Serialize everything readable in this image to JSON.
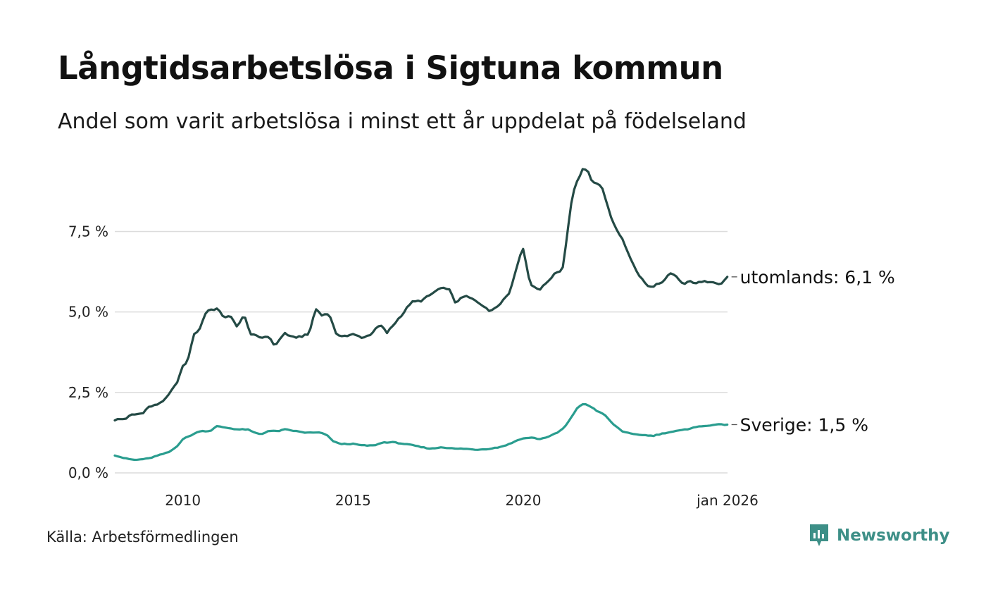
{
  "title": "Långtidsarbetslösa i Sigtuna kommun",
  "subtitle": "Andel som varit arbetslösa i minst ett år uppdelat på födelseland",
  "source": "Källa: Arbetsförmedlingen",
  "brand": {
    "name": "Newsworthy",
    "icon": "newsworthy-logo-icon",
    "color": "#3d8f87"
  },
  "chart_data": {
    "type": "line",
    "x_start": 2008.0,
    "x_step": 0.0833,
    "xlim": [
      2008.0,
      2026.0
    ],
    "ylim": [
      0,
      9.5
    ],
    "yticks": [
      {
        "value": 0,
        "label": "0,0 %"
      },
      {
        "value": 2.5,
        "label": "2,5 %"
      },
      {
        "value": 5,
        "label": "5,0 %"
      },
      {
        "value": 7.5,
        "label": "7,5 %"
      }
    ],
    "xticks": [
      {
        "value": 2010,
        "label": "2010"
      },
      {
        "value": 2015,
        "label": "2015"
      },
      {
        "value": 2020,
        "label": "2020"
      },
      {
        "value": 2026,
        "label": "jan 2026"
      }
    ],
    "grid": true,
    "series": [
      {
        "name": "utomlands",
        "end_label": "utomlands: 6,1 %",
        "color": "#244a45",
        "keypoints": [
          [
            2008.0,
            1.65
          ],
          [
            2008.3,
            1.68
          ],
          [
            2008.5,
            1.8
          ],
          [
            2008.8,
            1.85
          ],
          [
            2009.0,
            2.05
          ],
          [
            2009.2,
            2.1
          ],
          [
            2009.5,
            2.3
          ],
          [
            2009.8,
            2.75
          ],
          [
            2010.0,
            3.3
          ],
          [
            2010.15,
            3.5
          ],
          [
            2010.3,
            4.25
          ],
          [
            2010.5,
            4.5
          ],
          [
            2010.7,
            5.05
          ],
          [
            2011.0,
            5.1
          ],
          [
            2011.2,
            4.85
          ],
          [
            2011.4,
            4.85
          ],
          [
            2011.6,
            4.55
          ],
          [
            2011.8,
            4.9
          ],
          [
            2012.0,
            4.3
          ],
          [
            2012.3,
            4.2
          ],
          [
            2012.5,
            4.25
          ],
          [
            2012.7,
            3.95
          ],
          [
            2013.0,
            4.35
          ],
          [
            2013.2,
            4.2
          ],
          [
            2013.5,
            4.25
          ],
          [
            2013.7,
            4.3
          ],
          [
            2013.9,
            5.1
          ],
          [
            2014.1,
            4.9
          ],
          [
            2014.3,
            4.95
          ],
          [
            2014.5,
            4.3
          ],
          [
            2014.8,
            4.25
          ],
          [
            2015.0,
            4.3
          ],
          [
            2015.3,
            4.2
          ],
          [
            2015.5,
            4.3
          ],
          [
            2015.8,
            4.6
          ],
          [
            2016.0,
            4.35
          ],
          [
            2016.3,
            4.75
          ],
          [
            2016.5,
            5.0
          ],
          [
            2016.7,
            5.3
          ],
          [
            2017.0,
            5.35
          ],
          [
            2017.3,
            5.55
          ],
          [
            2017.5,
            5.7
          ],
          [
            2017.8,
            5.75
          ],
          [
            2018.0,
            5.3
          ],
          [
            2018.3,
            5.5
          ],
          [
            2018.6,
            5.35
          ],
          [
            2018.9,
            5.15
          ],
          [
            2019.0,
            5.0
          ],
          [
            2019.3,
            5.25
          ],
          [
            2019.6,
            5.6
          ],
          [
            2019.8,
            6.4
          ],
          [
            2020.0,
            7.0
          ],
          [
            2020.2,
            5.85
          ],
          [
            2020.5,
            5.7
          ],
          [
            2020.8,
            6.05
          ],
          [
            2021.0,
            6.25
          ],
          [
            2021.15,
            6.3
          ],
          [
            2021.3,
            7.5
          ],
          [
            2021.45,
            8.7
          ],
          [
            2021.6,
            9.1
          ],
          [
            2021.75,
            9.45
          ],
          [
            2021.9,
            9.35
          ],
          [
            2022.05,
            9.0
          ],
          [
            2022.3,
            8.95
          ],
          [
            2022.5,
            8.2
          ],
          [
            2022.7,
            7.6
          ],
          [
            2022.9,
            7.3
          ],
          [
            2023.1,
            6.8
          ],
          [
            2023.3,
            6.3
          ],
          [
            2023.5,
            6.0
          ],
          [
            2023.7,
            5.75
          ],
          [
            2023.9,
            5.85
          ],
          [
            2024.1,
            5.9
          ],
          [
            2024.3,
            6.2
          ],
          [
            2024.5,
            6.1
          ],
          [
            2024.7,
            5.85
          ],
          [
            2024.9,
            5.95
          ],
          [
            2025.1,
            5.9
          ],
          [
            2025.4,
            5.95
          ],
          [
            2025.6,
            5.95
          ],
          [
            2025.8,
            5.85
          ],
          [
            2026.0,
            6.1
          ]
        ]
      },
      {
        "name": "Sverige",
        "end_label": "Sverige: 1,5 %",
        "color": "#2a9d8f",
        "keypoints": [
          [
            2008.0,
            0.55
          ],
          [
            2008.3,
            0.45
          ],
          [
            2008.6,
            0.4
          ],
          [
            2009.0,
            0.45
          ],
          [
            2009.3,
            0.55
          ],
          [
            2009.6,
            0.65
          ],
          [
            2009.8,
            0.8
          ],
          [
            2010.0,
            1.05
          ],
          [
            2010.2,
            1.15
          ],
          [
            2010.5,
            1.3
          ],
          [
            2010.8,
            1.3
          ],
          [
            2011.0,
            1.45
          ],
          [
            2011.3,
            1.4
          ],
          [
            2011.6,
            1.35
          ],
          [
            2011.9,
            1.35
          ],
          [
            2012.1,
            1.25
          ],
          [
            2012.3,
            1.2
          ],
          [
            2012.5,
            1.3
          ],
          [
            2012.8,
            1.3
          ],
          [
            2013.0,
            1.35
          ],
          [
            2013.3,
            1.3
          ],
          [
            2013.6,
            1.25
          ],
          [
            2014.0,
            1.25
          ],
          [
            2014.2,
            1.2
          ],
          [
            2014.4,
            1.0
          ],
          [
            2014.6,
            0.9
          ],
          [
            2015.0,
            0.9
          ],
          [
            2015.3,
            0.85
          ],
          [
            2015.6,
            0.85
          ],
          [
            2015.9,
            0.95
          ],
          [
            2016.2,
            0.95
          ],
          [
            2016.5,
            0.9
          ],
          [
            2016.8,
            0.85
          ],
          [
            2017.0,
            0.8
          ],
          [
            2017.3,
            0.75
          ],
          [
            2017.6,
            0.8
          ],
          [
            2018.0,
            0.75
          ],
          [
            2018.3,
            0.75
          ],
          [
            2018.6,
            0.72
          ],
          [
            2019.0,
            0.75
          ],
          [
            2019.3,
            0.8
          ],
          [
            2019.6,
            0.9
          ],
          [
            2019.9,
            1.05
          ],
          [
            2020.2,
            1.1
          ],
          [
            2020.5,
            1.05
          ],
          [
            2020.8,
            1.15
          ],
          [
            2021.0,
            1.25
          ],
          [
            2021.2,
            1.4
          ],
          [
            2021.4,
            1.7
          ],
          [
            2021.6,
            2.05
          ],
          [
            2021.8,
            2.15
          ],
          [
            2022.0,
            2.05
          ],
          [
            2022.2,
            1.9
          ],
          [
            2022.4,
            1.8
          ],
          [
            2022.6,
            1.55
          ],
          [
            2022.9,
            1.3
          ],
          [
            2023.2,
            1.2
          ],
          [
            2023.5,
            1.18
          ],
          [
            2023.8,
            1.15
          ],
          [
            2024.0,
            1.2
          ],
          [
            2024.2,
            1.25
          ],
          [
            2024.5,
            1.3
          ],
          [
            2024.8,
            1.35
          ],
          [
            2025.0,
            1.42
          ],
          [
            2025.3,
            1.45
          ],
          [
            2025.6,
            1.5
          ],
          [
            2025.8,
            1.5
          ],
          [
            2026.0,
            1.5
          ]
        ]
      }
    ]
  }
}
